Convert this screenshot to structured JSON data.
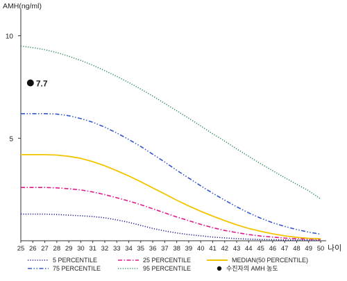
{
  "chart_data": {
    "type": "line",
    "ylabel": "AMH(ng/ml)",
    "xlabel": "나이",
    "xlim": [
      25,
      50
    ],
    "ylim": [
      0,
      11
    ],
    "y_ticks": [
      5,
      10
    ],
    "x": [
      25,
      26,
      27,
      28,
      29,
      30,
      31,
      32,
      33,
      34,
      35,
      36,
      37,
      38,
      39,
      40,
      41,
      42,
      43,
      44,
      45,
      46,
      47,
      48,
      49,
      50
    ],
    "grid": false,
    "series": [
      {
        "name": "5 PERCENTILE",
        "color": "#1a1a8c",
        "dash": "dotted",
        "values": [
          1.3,
          1.3,
          1.3,
          1.28,
          1.25,
          1.22,
          1.18,
          1.12,
          1.02,
          0.9,
          0.75,
          0.6,
          0.48,
          0.38,
          0.3,
          0.24,
          0.18,
          0.14,
          0.1,
          0.08,
          0.06,
          0.05,
          0.04,
          0.03,
          0.03,
          0.02
        ]
      },
      {
        "name": "25 PERCENTILE",
        "color": "#e0198a",
        "dash": "dashdot",
        "values": [
          2.6,
          2.6,
          2.6,
          2.58,
          2.54,
          2.48,
          2.38,
          2.25,
          2.1,
          1.94,
          1.76,
          1.56,
          1.36,
          1.16,
          0.98,
          0.8,
          0.64,
          0.5,
          0.4,
          0.3,
          0.23,
          0.18,
          0.13,
          0.1,
          0.08,
          0.06
        ]
      },
      {
        "name": "MEDIAN(50 PERCENTILE)",
        "color": "#f2c400",
        "dash": "solid",
        "values": [
          4.2,
          4.2,
          4.2,
          4.18,
          4.12,
          4.02,
          3.86,
          3.66,
          3.42,
          3.16,
          2.88,
          2.58,
          2.28,
          1.98,
          1.7,
          1.44,
          1.2,
          0.98,
          0.78,
          0.6,
          0.46,
          0.34,
          0.24,
          0.17,
          0.12,
          0.1
        ]
      },
      {
        "name": "75 PERCENTILE",
        "color": "#3355cc",
        "dash": "dashdotdot",
        "values": [
          6.2,
          6.2,
          6.2,
          6.18,
          6.1,
          5.96,
          5.78,
          5.54,
          5.26,
          4.94,
          4.6,
          4.22,
          3.84,
          3.44,
          3.06,
          2.68,
          2.32,
          1.98,
          1.66,
          1.36,
          1.1,
          0.88,
          0.7,
          0.55,
          0.42,
          0.32
        ]
      },
      {
        "name": "95 PERCENTILE",
        "color": "#2e8b57",
        "dash": "dotted",
        "values": [
          9.5,
          9.42,
          9.32,
          9.18,
          9.0,
          8.8,
          8.56,
          8.3,
          8.02,
          7.72,
          7.4,
          7.06,
          6.7,
          6.34,
          5.98,
          5.6,
          5.22,
          4.86,
          4.48,
          4.12,
          3.76,
          3.42,
          3.08,
          2.76,
          2.44,
          2.04
        ]
      }
    ],
    "marker": {
      "name": "수진자의 AMH 농도",
      "x": 25.8,
      "y": 7.7,
      "label": "7.7",
      "color": "#111111"
    },
    "legend_position": "bottom"
  }
}
